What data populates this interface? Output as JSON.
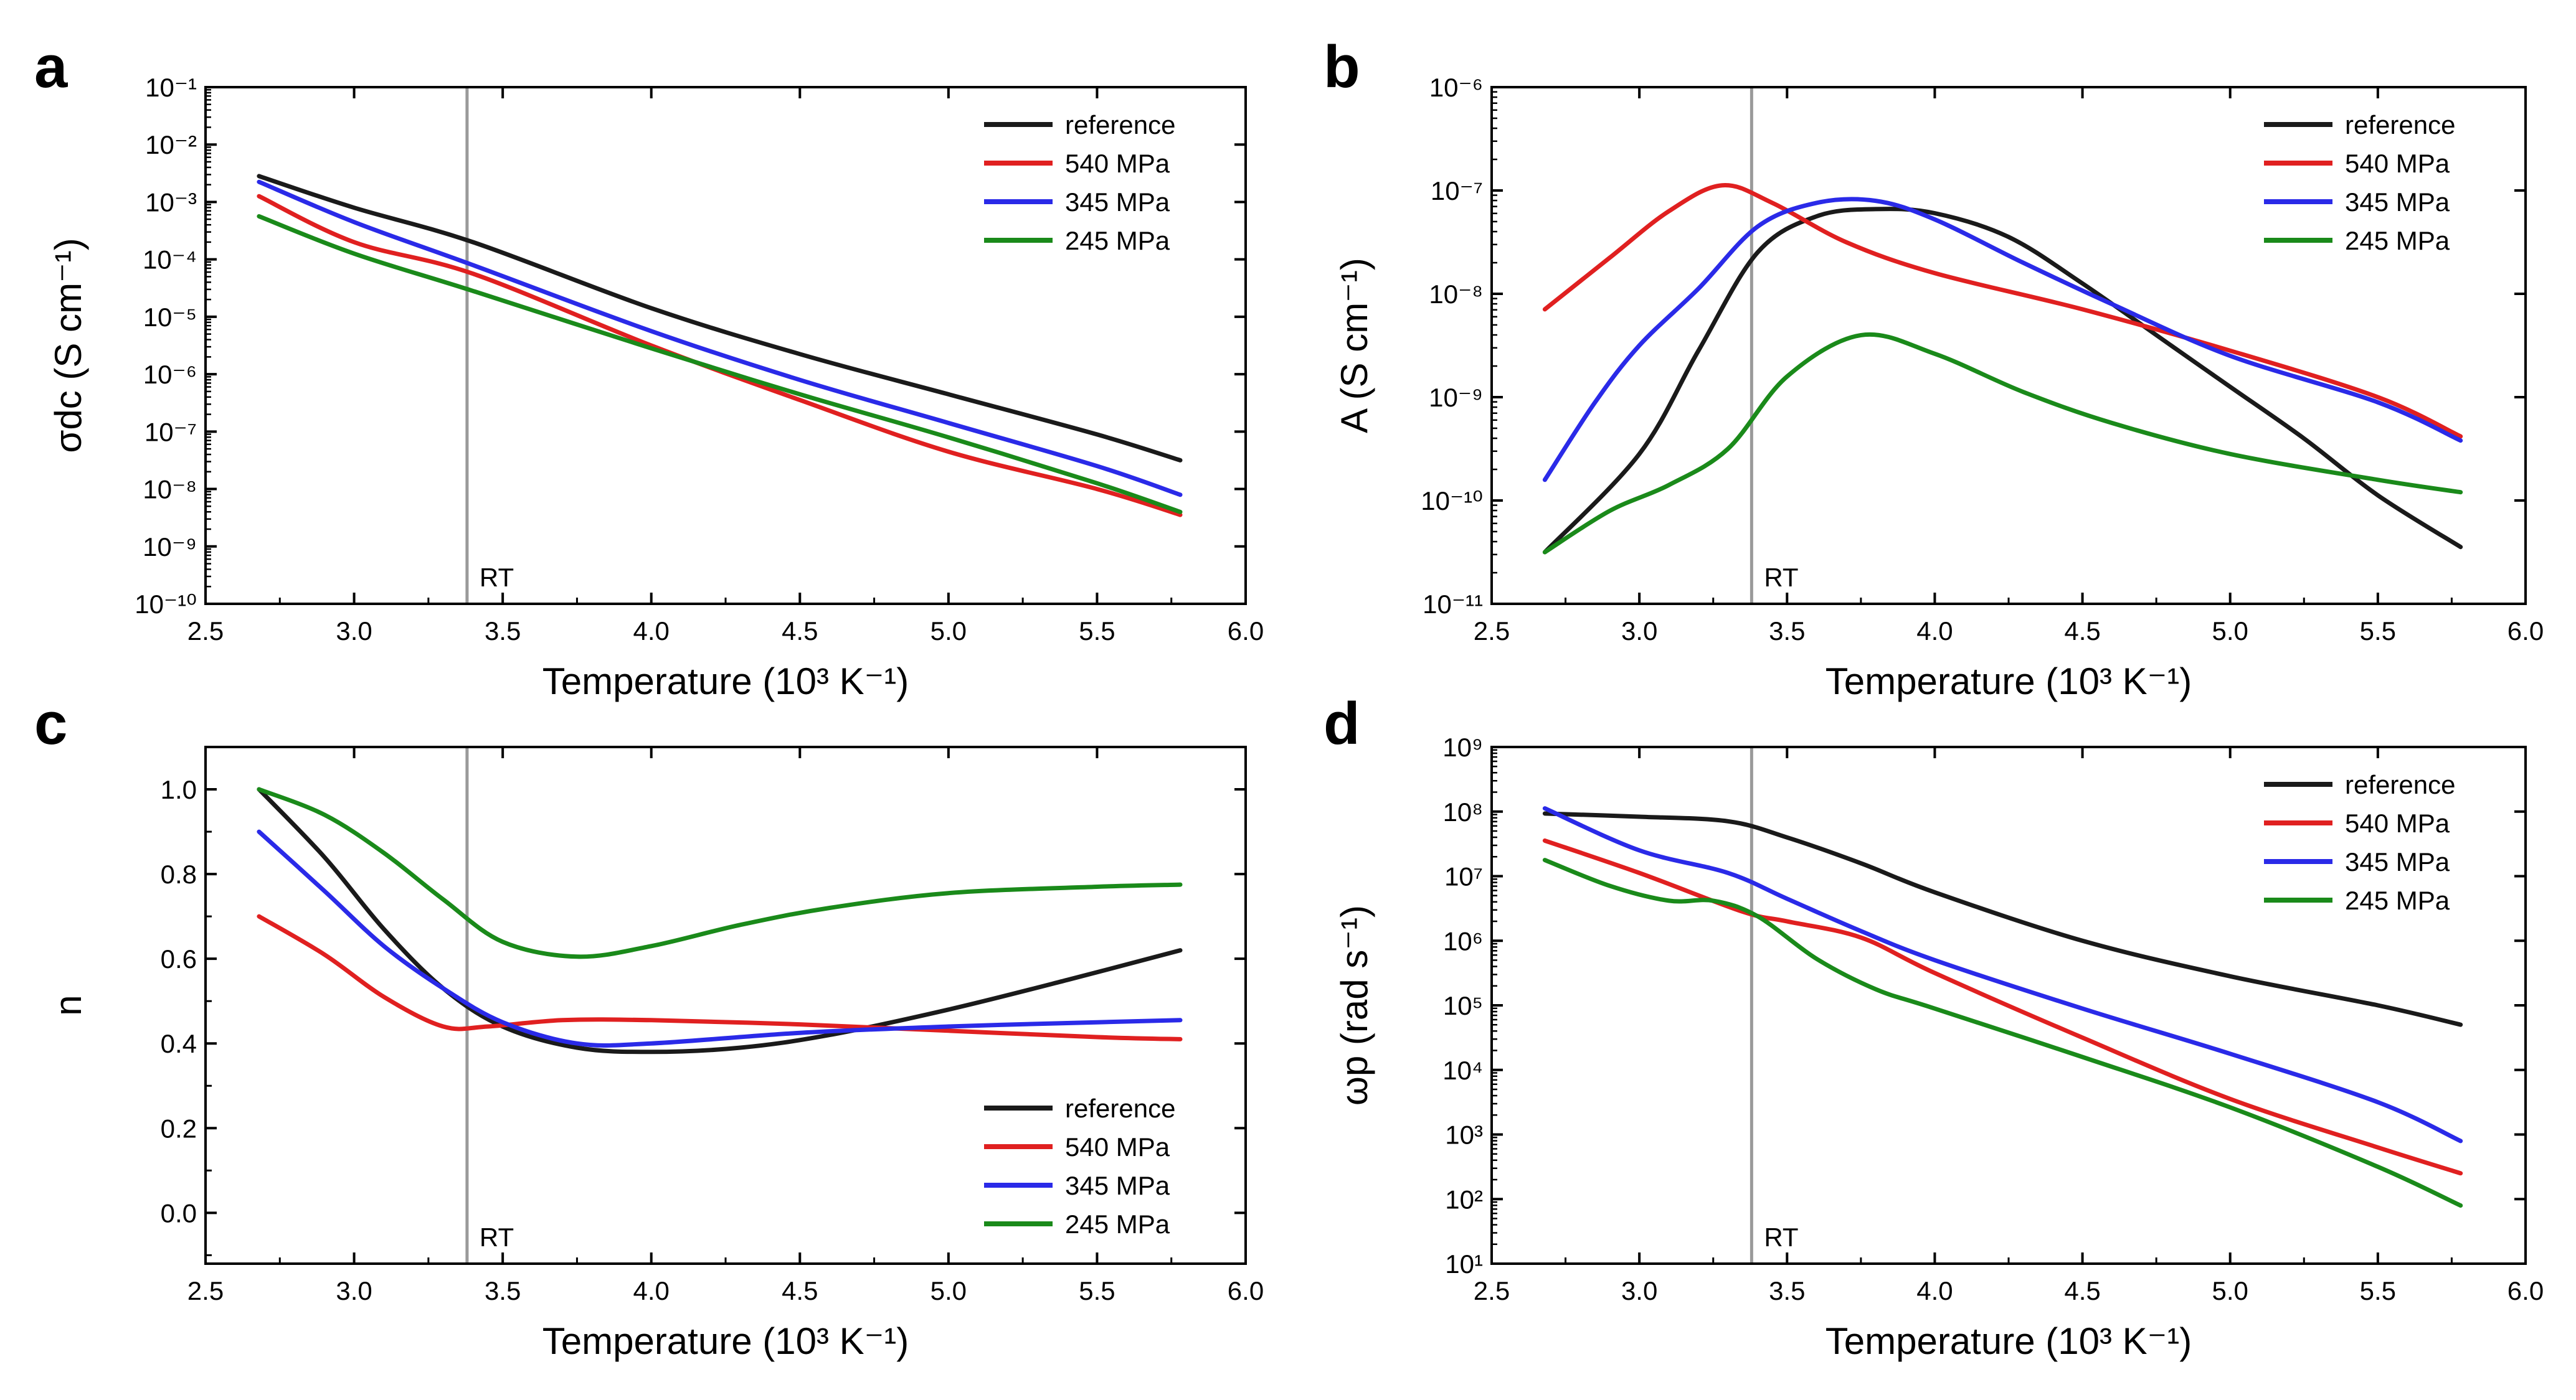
{
  "figure": {
    "rt_marker_x": 3.38,
    "rt_label": "RT",
    "series_colors": {
      "reference": "#1a1a1a",
      "540 MPa": "#e02020",
      "345 MPa": "#2a2ae8",
      "245 MPa": "#1a8a1a"
    },
    "rt_line_color": "#9a9a9a"
  },
  "chart_data": [
    {
      "panel": "a",
      "type": "line",
      "yscale": "log",
      "title": "",
      "xlabel": "Temperature (10³ K⁻¹)",
      "ylabel": "σdc (S cm⁻¹)",
      "xlim": [
        2.5,
        6.0
      ],
      "ylim": [
        -10,
        -1
      ],
      "xticks": [
        2.5,
        3.0,
        3.5,
        4.0,
        4.5,
        5.0,
        5.5,
        6.0
      ],
      "xtick_labels": [
        "2.5",
        "3.0",
        "3.5",
        "4.0",
        "4.5",
        "5.0",
        "5.5",
        "6.0"
      ],
      "yticks": [
        -10,
        -9,
        -8,
        -7,
        -6,
        -5,
        -4,
        -3,
        -2,
        -1
      ],
      "ytick_labels": [
        "10⁻¹⁰",
        "10⁻⁹",
        "10⁻⁸",
        "10⁻⁷",
        "10⁻⁶",
        "10⁻⁵",
        "10⁻⁴",
        "10⁻³",
        "10⁻²",
        "10⁻¹"
      ],
      "legend_position": "top-right",
      "rt_label_position": "bottom",
      "series": [
        {
          "name": "reference",
          "x": [
            2.68,
            3.0,
            3.4,
            4.0,
            4.5,
            5.0,
            5.5,
            5.78
          ],
          "y": [
            -2.55,
            -3.1,
            -3.7,
            -4.85,
            -5.65,
            -6.35,
            -7.05,
            -7.5
          ]
        },
        {
          "name": "540 MPa",
          "x": [
            2.68,
            3.0,
            3.4,
            4.0,
            4.5,
            5.0,
            5.5,
            5.78
          ],
          "y": [
            -2.9,
            -3.7,
            -4.25,
            -5.5,
            -6.45,
            -7.35,
            -8.0,
            -8.45
          ]
        },
        {
          "name": "345 MPa",
          "x": [
            2.68,
            3.0,
            3.4,
            4.0,
            4.5,
            5.0,
            5.5,
            5.78
          ],
          "y": [
            -2.65,
            -3.35,
            -4.1,
            -5.25,
            -6.1,
            -6.85,
            -7.6,
            -8.1
          ]
        },
        {
          "name": "245 MPa",
          "x": [
            2.68,
            3.0,
            3.4,
            4.0,
            4.5,
            5.0,
            5.5,
            5.78
          ],
          "y": [
            -3.25,
            -3.9,
            -4.55,
            -5.55,
            -6.35,
            -7.1,
            -7.9,
            -8.4
          ]
        }
      ]
    },
    {
      "panel": "b",
      "type": "line",
      "yscale": "log",
      "title": "",
      "xlabel": "Temperature (10³ K⁻¹)",
      "ylabel": "A (S cm⁻¹)",
      "xlim": [
        2.5,
        6.0
      ],
      "ylim": [
        -11,
        -6
      ],
      "xticks": [
        2.5,
        3.0,
        3.5,
        4.0,
        4.5,
        5.0,
        5.5,
        6.0
      ],
      "xtick_labels": [
        "2.5",
        "3.0",
        "3.5",
        "4.0",
        "4.5",
        "5.0",
        "5.5",
        "6.0"
      ],
      "yticks": [
        -11,
        -10,
        -9,
        -8,
        -7,
        -6
      ],
      "ytick_labels": [
        "10⁻¹¹",
        "10⁻¹⁰",
        "10⁻⁹",
        "10⁻⁸",
        "10⁻⁷",
        "10⁻⁶"
      ],
      "legend_position": "top-right",
      "rt_label_position": "bottom",
      "series": [
        {
          "name": "reference",
          "x": [
            2.68,
            3.0,
            3.2,
            3.4,
            3.6,
            3.8,
            4.0,
            4.25,
            4.5,
            4.8,
            5.0,
            5.25,
            5.5,
            5.78
          ],
          "y": [
            -10.5,
            -9.55,
            -8.55,
            -7.6,
            -7.25,
            -7.18,
            -7.22,
            -7.45,
            -7.9,
            -8.5,
            -8.9,
            -9.4,
            -9.95,
            -10.45
          ]
        },
        {
          "name": "540 MPa",
          "x": [
            2.68,
            2.9,
            3.1,
            3.28,
            3.45,
            3.7,
            4.0,
            4.5,
            5.0,
            5.5,
            5.78
          ],
          "y": [
            -8.15,
            -7.65,
            -7.2,
            -6.95,
            -7.12,
            -7.5,
            -7.8,
            -8.15,
            -8.55,
            -9.0,
            -9.38
          ]
        },
        {
          "name": "345 MPa",
          "x": [
            2.68,
            2.85,
            3.0,
            3.2,
            3.4,
            3.6,
            3.8,
            4.0,
            4.3,
            4.6,
            5.0,
            5.5,
            5.78
          ],
          "y": [
            -9.8,
            -9.05,
            -8.5,
            -7.95,
            -7.35,
            -7.12,
            -7.1,
            -7.28,
            -7.7,
            -8.1,
            -8.6,
            -9.05,
            -9.42
          ]
        },
        {
          "name": "245 MPa",
          "x": [
            2.68,
            2.9,
            3.1,
            3.3,
            3.5,
            3.75,
            4.0,
            4.3,
            4.6,
            5.0,
            5.5,
            5.78
          ],
          "y": [
            -10.5,
            -10.1,
            -9.85,
            -9.5,
            -8.8,
            -8.4,
            -8.58,
            -8.95,
            -9.25,
            -9.55,
            -9.8,
            -9.92
          ]
        }
      ]
    },
    {
      "panel": "c",
      "type": "line",
      "yscale": "linear",
      "title": "",
      "xlabel": "Temperature (10³ K⁻¹)",
      "ylabel": "n",
      "xlim": [
        2.5,
        6.0
      ],
      "ylim": [
        -0.12,
        1.1
      ],
      "xticks": [
        2.5,
        3.0,
        3.5,
        4.0,
        4.5,
        5.0,
        5.5,
        6.0
      ],
      "xtick_labels": [
        "2.5",
        "3.0",
        "3.5",
        "4.0",
        "4.5",
        "5.0",
        "5.5",
        "6.0"
      ],
      "yticks": [
        0.0,
        0.2,
        0.4,
        0.6,
        0.8,
        1.0
      ],
      "ytick_labels": [
        "0.0",
        "0.2",
        "0.4",
        "0.6",
        "0.8",
        "1.0"
      ],
      "legend_position": "bottom-right",
      "rt_label_position": "bottom",
      "series": [
        {
          "name": "reference",
          "x": [
            2.68,
            2.9,
            3.1,
            3.3,
            3.5,
            3.75,
            4.0,
            4.3,
            4.6,
            5.0,
            5.4,
            5.78
          ],
          "y": [
            1.0,
            0.84,
            0.67,
            0.53,
            0.44,
            0.39,
            0.38,
            0.39,
            0.42,
            0.48,
            0.55,
            0.62
          ]
        },
        {
          "name": "540 MPa",
          "x": [
            2.68,
            2.9,
            3.1,
            3.3,
            3.45,
            3.7,
            4.0,
            4.5,
            5.0,
            5.5,
            5.78
          ],
          "y": [
            0.7,
            0.61,
            0.51,
            0.44,
            0.44,
            0.455,
            0.455,
            0.445,
            0.43,
            0.415,
            0.41
          ]
        },
        {
          "name": "345 MPa",
          "x": [
            2.68,
            2.9,
            3.1,
            3.3,
            3.5,
            3.75,
            4.0,
            4.5,
            5.0,
            5.5,
            5.78
          ],
          "y": [
            0.9,
            0.76,
            0.63,
            0.53,
            0.45,
            0.4,
            0.4,
            0.425,
            0.44,
            0.45,
            0.455
          ]
        },
        {
          "name": "245 MPa",
          "x": [
            2.68,
            2.9,
            3.1,
            3.3,
            3.5,
            3.75,
            4.0,
            4.3,
            4.6,
            5.0,
            5.5,
            5.78
          ],
          "y": [
            1.0,
            0.94,
            0.85,
            0.74,
            0.64,
            0.605,
            0.63,
            0.68,
            0.72,
            0.755,
            0.77,
            0.775
          ]
        }
      ]
    },
    {
      "panel": "d",
      "type": "line",
      "yscale": "log",
      "title": "",
      "xlabel": "Temperature (10³ K⁻¹)",
      "ylabel": "ωp (rad s⁻¹)",
      "xlim": [
        2.5,
        6.0
      ],
      "ylim": [
        1,
        9
      ],
      "xticks": [
        2.5,
        3.0,
        3.5,
        4.0,
        4.5,
        5.0,
        5.5,
        6.0
      ],
      "xtick_labels": [
        "2.5",
        "3.0",
        "3.5",
        "4.0",
        "4.5",
        "5.0",
        "5.5",
        "6.0"
      ],
      "yticks": [
        1,
        2,
        3,
        4,
        5,
        6,
        7,
        8,
        9
      ],
      "ytick_labels": [
        "10¹",
        "10²",
        "10³",
        "10⁴",
        "10⁵",
        "10⁶",
        "10⁷",
        "10⁸",
        "10⁹"
      ],
      "legend_position": "top-right",
      "rt_label_position": "bottom",
      "series": [
        {
          "name": "reference",
          "x": [
            2.68,
            3.0,
            3.3,
            3.5,
            3.75,
            4.0,
            4.5,
            5.0,
            5.5,
            5.78
          ],
          "y": [
            7.97,
            7.92,
            7.85,
            7.6,
            7.2,
            6.75,
            6.0,
            5.45,
            5.0,
            4.7
          ]
        },
        {
          "name": "540 MPa",
          "x": [
            2.68,
            3.0,
            3.35,
            3.5,
            3.75,
            4.0,
            4.5,
            5.0,
            5.5,
            5.78
          ],
          "y": [
            7.55,
            7.05,
            6.45,
            6.3,
            6.05,
            5.5,
            4.5,
            3.55,
            2.8,
            2.4
          ]
        },
        {
          "name": "345 MPa",
          "x": [
            2.68,
            3.0,
            3.3,
            3.5,
            3.75,
            4.0,
            4.5,
            5.0,
            5.5,
            5.78
          ],
          "y": [
            8.05,
            7.4,
            7.05,
            6.65,
            6.15,
            5.7,
            4.95,
            4.25,
            3.5,
            2.9
          ]
        },
        {
          "name": "245 MPa",
          "x": [
            2.68,
            2.9,
            3.1,
            3.25,
            3.4,
            3.6,
            3.8,
            4.0,
            4.5,
            5.0,
            5.5,
            5.78
          ],
          "y": [
            7.25,
            6.85,
            6.62,
            6.62,
            6.38,
            5.72,
            5.25,
            4.95,
            4.2,
            3.42,
            2.5,
            1.9
          ]
        }
      ]
    }
  ]
}
